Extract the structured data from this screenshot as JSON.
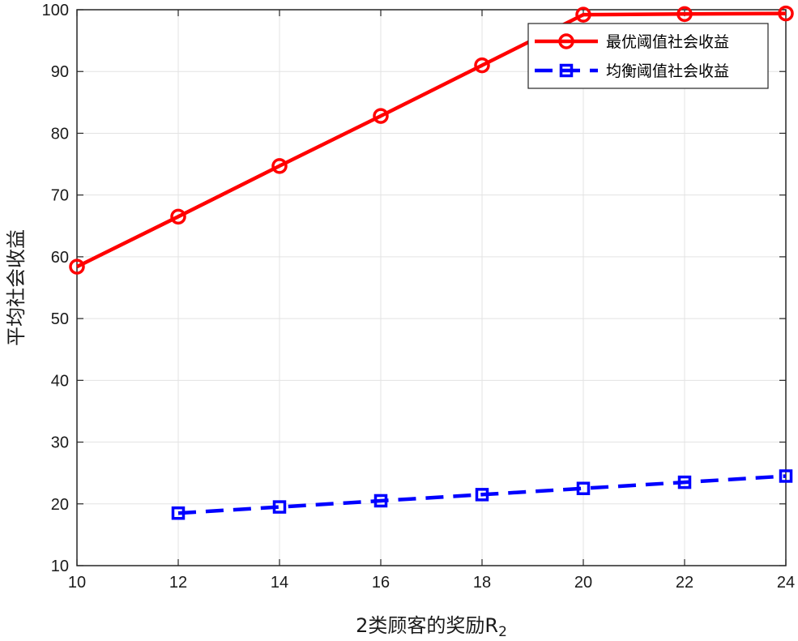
{
  "chart_data": {
    "type": "line",
    "title": "",
    "xlabel": "2类顾客的奖励R",
    "xlabel_subscript": "2",
    "ylabel": "平均社会收益",
    "xlim": [
      10,
      24
    ],
    "ylim": [
      10,
      100
    ],
    "xticks": [
      10,
      12,
      14,
      16,
      18,
      20,
      22,
      24
    ],
    "yticks": [
      10,
      20,
      30,
      40,
      50,
      60,
      70,
      80,
      90,
      100
    ],
    "grid": true,
    "legend_position": "top-right",
    "series": [
      {
        "name": "最优阈值社会收益",
        "color": "#ff0000",
        "line_style": "solid",
        "marker": "circle",
        "x": [
          10,
          12,
          14,
          16,
          18,
          20,
          22,
          24
        ],
        "y": [
          58.4,
          66.5,
          74.7,
          82.8,
          91.0,
          99.2,
          99.3,
          99.4
        ]
      },
      {
        "name": "均衡阈值社会收益",
        "color": "#0000ff",
        "line_style": "dashed",
        "marker": "square",
        "x": [
          12,
          14,
          16,
          18,
          20,
          22,
          24
        ],
        "y": [
          18.5,
          19.5,
          20.5,
          21.5,
          22.5,
          23.5,
          24.5
        ]
      }
    ]
  }
}
